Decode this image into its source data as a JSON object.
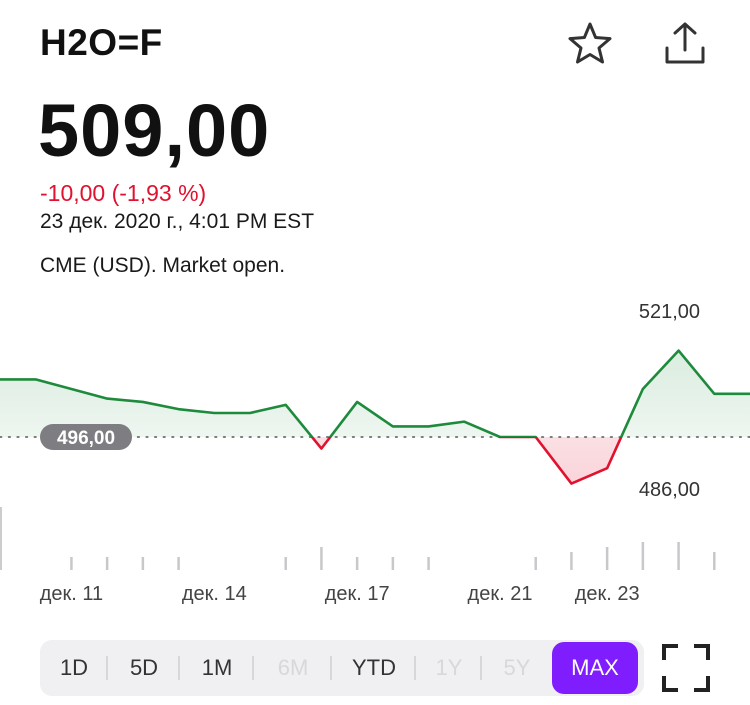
{
  "header": {
    "ticker": "H2O=F",
    "star_icon": "star-icon",
    "share_icon": "share-icon"
  },
  "quote": {
    "price": "509,00",
    "change": "-10,00 (-1,93 %)",
    "timestamp": "23 дек. 2020 г., 4:01 PM EST",
    "market_status": "CME (USD). Market open."
  },
  "colors": {
    "up": "#1e8a3c",
    "down": "#e0122f",
    "active_tab": "#7f1dff"
  },
  "chart_data": {
    "type": "area",
    "baseline": 496,
    "baseline_label": "496,00",
    "high_label": "521,00",
    "low_label": "486,00",
    "y_range": [
      486,
      521
    ],
    "points": [
      {
        "t": 0,
        "v": 508
      },
      {
        "t": 1,
        "v": 508
      },
      {
        "t": 2,
        "v": 506
      },
      {
        "t": 3,
        "v": 504
      },
      {
        "t": 4,
        "v": 503.3
      },
      {
        "t": 5,
        "v": 501.8
      },
      {
        "t": 6,
        "v": 501
      },
      {
        "t": 7,
        "v": 501
      },
      {
        "t": 8,
        "v": 502.7
      },
      {
        "t": 9,
        "v": 493.6
      },
      {
        "t": 10,
        "v": 503.3
      },
      {
        "t": 11,
        "v": 498.2
      },
      {
        "t": 12,
        "v": 498.2
      },
      {
        "t": 13,
        "v": 499.2
      },
      {
        "t": 14,
        "v": 496
      },
      {
        "t": 15,
        "v": 496
      },
      {
        "t": 16,
        "v": 486.3
      },
      {
        "t": 17,
        "v": 489.5
      },
      {
        "t": 18,
        "v": 506
      },
      {
        "t": 19,
        "v": 514
      },
      {
        "t": 20,
        "v": 505
      },
      {
        "t": 21,
        "v": 505
      }
    ],
    "x_ticks": [
      {
        "t": 2,
        "label": "дек. 11"
      },
      {
        "t": 6,
        "label": "дек. 14"
      },
      {
        "t": 10,
        "label": "дек. 17"
      },
      {
        "t": 14,
        "label": "дек. 21"
      },
      {
        "t": 17,
        "label": "дек. 23"
      }
    ],
    "volume_ticks": [
      {
        "t": 2,
        "h": 1
      },
      {
        "t": 3,
        "h": 1
      },
      {
        "t": 4,
        "h": 1
      },
      {
        "t": 5,
        "h": 1
      },
      {
        "t": 8,
        "h": 1
      },
      {
        "t": 9,
        "h": 3
      },
      {
        "t": 10,
        "h": 1
      },
      {
        "t": 11,
        "h": 1
      },
      {
        "t": 12,
        "h": 1
      },
      {
        "t": 15,
        "h": 1
      },
      {
        "t": 16,
        "h": 2
      },
      {
        "t": 17,
        "h": 3
      },
      {
        "t": 18,
        "h": 4
      },
      {
        "t": 19,
        "h": 4
      },
      {
        "t": 20,
        "h": 2
      }
    ]
  },
  "range_tabs": [
    {
      "label": "1D",
      "state": "normal"
    },
    {
      "label": "5D",
      "state": "normal"
    },
    {
      "label": "1M",
      "state": "normal"
    },
    {
      "label": "6M",
      "state": "disabled"
    },
    {
      "label": "YTD",
      "state": "normal"
    },
    {
      "label": "1Y",
      "state": "disabled"
    },
    {
      "label": "5Y",
      "state": "disabled"
    },
    {
      "label": "MAX",
      "state": "active"
    }
  ],
  "expand_icon": "fullscreen-icon"
}
